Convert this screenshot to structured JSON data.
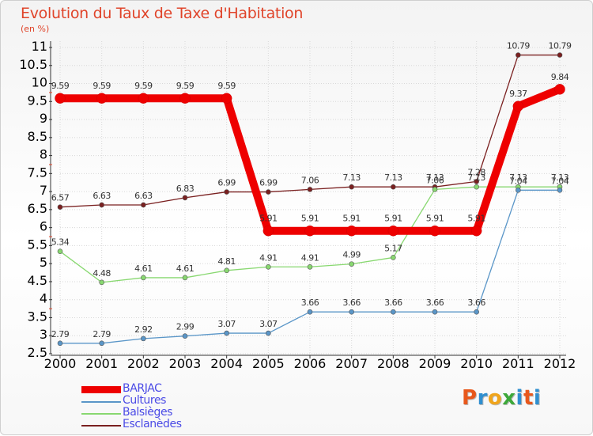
{
  "title": "Evolution du Taux de Taxe d'Habitation",
  "unit": "(en %)",
  "logo": {
    "letters": [
      "P",
      "r",
      "o",
      "x",
      "i",
      "t",
      "i"
    ],
    "colors": [
      "#e8581c",
      "#2f8fd0",
      "#f0a51c",
      "#3da83a",
      "#2f8fd0",
      "#e8581c",
      "#2f8fd0"
    ]
  },
  "chart_data": {
    "type": "line",
    "title": "Evolution du Taux de Taxe d'Habitation",
    "ylabel": "(en %)",
    "xlabel": "",
    "x": [
      "2000",
      "2001",
      "2002",
      "2003",
      "2004",
      "2005",
      "2006",
      "2007",
      "2008",
      "2009",
      "2010",
      "2011",
      "2012"
    ],
    "ylim": [
      2.5,
      11
    ],
    "yticks": [
      "2.5",
      "3",
      "3.5",
      "4",
      "4.5",
      "5",
      "5.5",
      "6",
      "6.5",
      "7",
      "7.5",
      "8",
      "8.5",
      "9",
      "9.5",
      "10",
      "10.5",
      "11"
    ],
    "legend_position": "bottom-left",
    "series": [
      {
        "name": "BARJAC",
        "color": "#ee0000",
        "values": [
          9.59,
          9.59,
          9.59,
          9.59,
          9.59,
          5.91,
          5.91,
          5.91,
          5.91,
          5.91,
          5.91,
          9.37,
          9.84
        ],
        "labels": [
          "9.59",
          "9.59",
          "9.59",
          "9.59",
          "9.59",
          "5.91",
          "5.91",
          "5.91",
          "5.91",
          "5.91",
          "5.91",
          "9.37",
          "9.84"
        ]
      },
      {
        "name": "Cultures",
        "color": "#5a96c8",
        "values": [
          2.79,
          2.79,
          2.92,
          2.99,
          3.07,
          3.07,
          3.66,
          3.66,
          3.66,
          3.66,
          3.66,
          7.04,
          7.04
        ],
        "labels": [
          "2.79",
          "2.79",
          "2.92",
          "2.99",
          "3.07",
          "3.07",
          "3.66",
          "3.66",
          "3.66",
          "3.66",
          "3.66",
          "7.04",
          "7.04"
        ]
      },
      {
        "name": "Balsièges",
        "color": "#88d870",
        "values": [
          5.34,
          4.48,
          4.61,
          4.61,
          4.81,
          4.91,
          4.91,
          4.99,
          5.17,
          7.06,
          7.13,
          7.13,
          7.13
        ],
        "labels": [
          "5.34",
          "4.48",
          "4.61",
          "4.61",
          "4.81",
          "4.91",
          "4.91",
          "4.99",
          "5.17",
          "7.06",
          "7.13",
          "7.13",
          "7.13"
        ]
      },
      {
        "name": "Esclanèdes",
        "color": "#7a2020",
        "values": [
          6.57,
          6.63,
          6.63,
          6.83,
          6.99,
          6.99,
          7.06,
          7.13,
          7.13,
          7.13,
          7.28,
          10.79,
          10.79
        ],
        "labels": [
          "6.57",
          "6.63",
          "6.63",
          "6.83",
          "6.99",
          "6.99",
          "7.06",
          "7.13",
          "7.13",
          "7.13",
          "7.28",
          "10.79",
          "10.79"
        ]
      }
    ]
  }
}
